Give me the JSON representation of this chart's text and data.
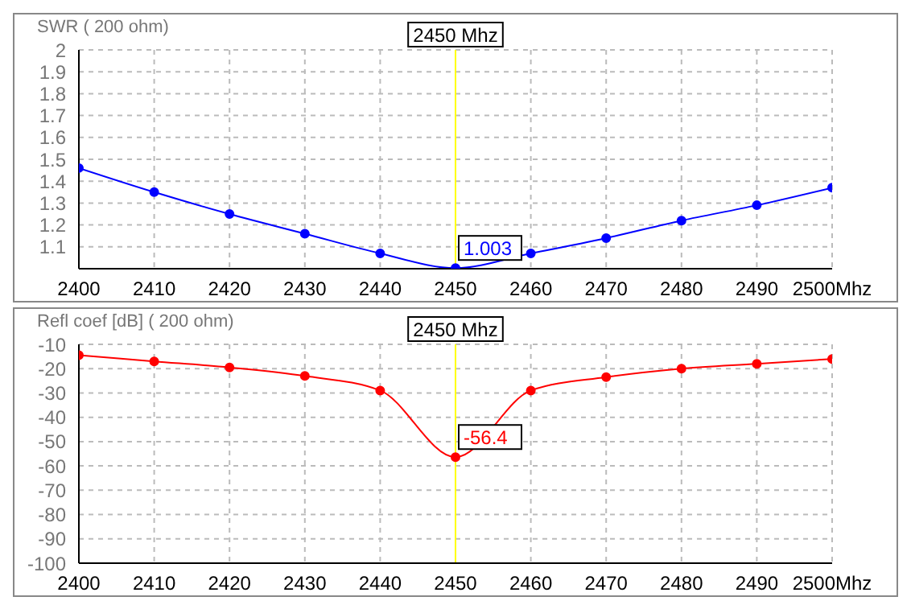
{
  "chart_data": [
    {
      "type": "line",
      "ylabel": "SWR ( 200 ohm)",
      "x": [
        2400,
        2410,
        2420,
        2430,
        2440,
        2450,
        2460,
        2470,
        2480,
        2490,
        2500
      ],
      "series": [
        {
          "color": "#0000ff",
          "values": [
            1.46,
            1.35,
            1.25,
            1.16,
            1.07,
            1.003,
            1.07,
            1.14,
            1.22,
            1.29,
            1.37
          ]
        }
      ],
      "xlim": [
        2400,
        2500
      ],
      "xticks": [
        2400,
        2410,
        2420,
        2430,
        2440,
        2450,
        2460,
        2470,
        2480,
        2490,
        {
          "value": 2500,
          "label": "2500Mhz"
        }
      ],
      "ylim": [
        1,
        2
      ],
      "yticks": [
        1.1,
        1.2,
        1.3,
        1.4,
        1.5,
        1.6,
        1.7,
        1.8,
        1.9,
        2
      ],
      "grid": true,
      "marker": "circle",
      "line_style": "solid",
      "legend": false,
      "ref_lines": [
        {
          "axis": "x",
          "value": 2450,
          "label": "2450 Mhz",
          "color": "#ffff00"
        }
      ],
      "annotations": [
        {
          "text": "1.003",
          "x": 2450,
          "y": 1.003
        }
      ]
    },
    {
      "type": "line",
      "ylabel": "Refl coef [dB] ( 200 ohm)",
      "x": [
        2400,
        2410,
        2420,
        2430,
        2440,
        2450,
        2460,
        2470,
        2480,
        2490,
        2500
      ],
      "series": [
        {
          "color": "#ff0000",
          "values": [
            -14.5,
            -17,
            -19.5,
            -23,
            -29,
            -56.4,
            -29,
            -23.5,
            -20,
            -18,
            -16
          ]
        }
      ],
      "xlim": [
        2400,
        2500
      ],
      "xticks": [
        2400,
        2410,
        2420,
        2430,
        2440,
        2450,
        2460,
        2470,
        2480,
        2490,
        {
          "value": 2500,
          "label": "2500Mhz"
        }
      ],
      "ylim": [
        -100,
        -10
      ],
      "yticks": [
        -10,
        -20,
        -30,
        -40,
        -50,
        -60,
        -70,
        -80,
        -90,
        -100
      ],
      "grid": true,
      "marker": "circle",
      "line_style": "solid",
      "legend": false,
      "ref_lines": [
        {
          "axis": "x",
          "value": 2450,
          "label": "2450 Mhz",
          "color": "#ffff00"
        }
      ],
      "annotations": [
        {
          "text": "-56.4",
          "x": 2450,
          "y": -56.4
        }
      ]
    }
  ]
}
